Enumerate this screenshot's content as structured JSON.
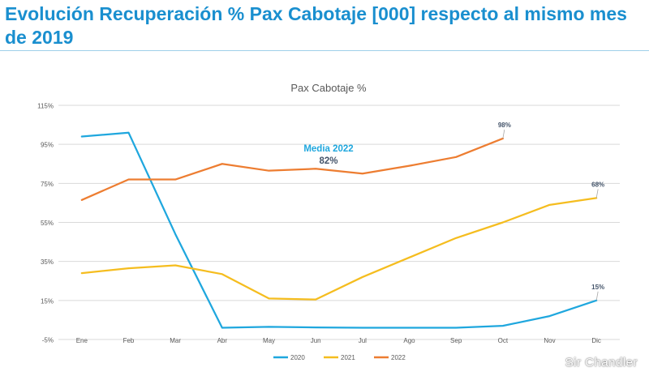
{
  "page": {
    "title": "Evolución Recuperación % Pax Cabotaje [000] respecto al mismo mes de 2019",
    "watermark": "Sir Chandler"
  },
  "chart_data": {
    "type": "line",
    "title": "Pax Cabotaje %",
    "categories": [
      "Ene",
      "Feb",
      "Mar",
      "Abr",
      "May",
      "Jun",
      "Jul",
      "Ago",
      "Sep",
      "Oct",
      "Nov",
      "Dic"
    ],
    "ylim": [
      -5,
      115
    ],
    "yticks": [
      -5,
      15,
      35,
      55,
      75,
      95,
      115
    ],
    "ytick_labels": [
      "-5%",
      "15%",
      "35%",
      "55%",
      "75%",
      "95%",
      "115%"
    ],
    "grid": true,
    "legend_position": "bottom",
    "series": [
      {
        "name": "2020",
        "color": "#1fa7de",
        "values": [
          99,
          101,
          49,
          1,
          1.5,
          1.2,
          1,
          1,
          1,
          2,
          7,
          15
        ],
        "end_label": "15%"
      },
      {
        "name": "2021",
        "color": "#f5bd1f",
        "values": [
          29,
          31.5,
          33,
          28.5,
          16,
          15.5,
          27,
          37,
          47,
          55,
          64,
          67.5
        ],
        "end_label": "68%"
      },
      {
        "name": "2022",
        "color": "#ed7d31",
        "values": [
          66.5,
          77,
          77,
          85,
          81.5,
          82.5,
          80,
          84,
          88.5,
          98,
          null,
          null
        ],
        "end_label": "98%"
      }
    ],
    "annotation": {
      "label": "Media 2022",
      "value": "82%"
    }
  }
}
